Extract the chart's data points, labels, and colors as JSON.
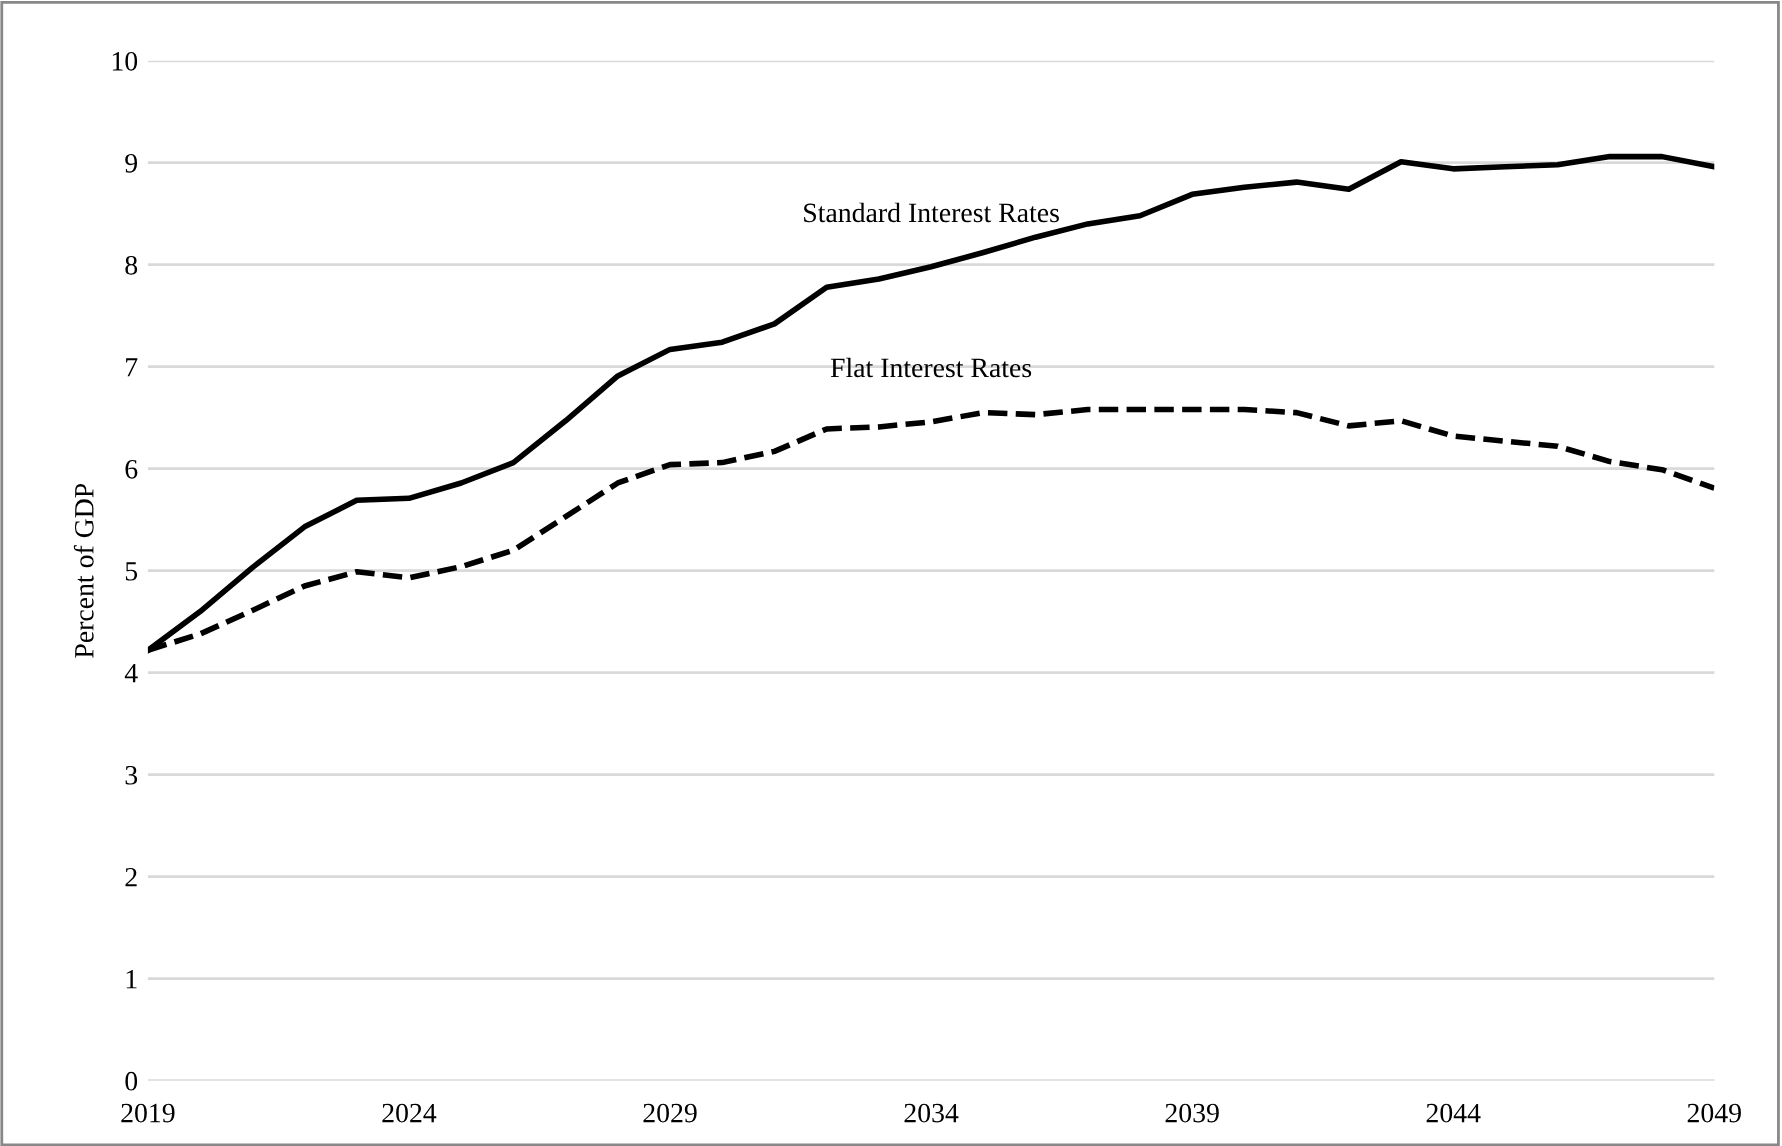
{
  "chart_data": {
    "type": "line",
    "ylabel": "Percent of GDP",
    "x": [
      2019,
      2020,
      2021,
      2022,
      2023,
      2024,
      2025,
      2026,
      2027,
      2028,
      2029,
      2030,
      2031,
      2032,
      2033,
      2034,
      2035,
      2036,
      2037,
      2038,
      2039,
      2040,
      2041,
      2042,
      2043,
      2044,
      2045,
      2046,
      2047,
      2048,
      2049
    ],
    "series": [
      {
        "name": "Standard Interest Rates",
        "color": "#000000",
        "line_style": "solid",
        "values": [
          4.22,
          4.6,
          5.03,
          5.43,
          5.69,
          5.71,
          5.86,
          6.06,
          6.47,
          6.91,
          7.17,
          7.24,
          7.42,
          7.78,
          7.86,
          7.98,
          8.12,
          8.27,
          8.4,
          8.48,
          8.69,
          8.76,
          8.81,
          8.74,
          9.01,
          8.94,
          8.96,
          8.98,
          9.06,
          9.06,
          8.96
        ]
      },
      {
        "name": "Flat Interest Rates",
        "color": "#000000",
        "line_style": "dashed",
        "values": [
          4.22,
          4.38,
          4.61,
          4.85,
          4.99,
          4.93,
          5.04,
          5.2,
          5.53,
          5.86,
          6.04,
          6.06,
          6.17,
          6.39,
          6.41,
          6.46,
          6.55,
          6.53,
          6.58,
          6.58,
          6.58,
          6.58,
          6.55,
          6.42,
          6.47,
          6.32,
          6.27,
          6.22,
          6.07,
          5.99,
          5.81
        ]
      }
    ],
    "xlim": [
      2019,
      2049
    ],
    "xticks": [
      2019,
      2024,
      2029,
      2034,
      2039,
      2044,
      2049
    ],
    "ylim": [
      0,
      10
    ],
    "yticks": [
      0,
      1,
      2,
      3,
      4,
      5,
      6,
      7,
      8,
      9,
      10
    ],
    "grid": "y",
    "legend": false,
    "marker": "none"
  }
}
